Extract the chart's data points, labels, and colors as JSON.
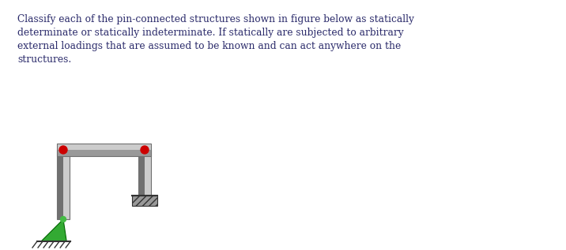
{
  "text_lines": [
    "Classify each of the pin-connected structures shown in figure below as statically",
    "determinate or statically indeterminate. If statically are subjected to arbitrary",
    "external loadings that are assumed to be known and can act anywhere on the",
    "structures."
  ],
  "text_color": "#2b2b6b",
  "background_color": "#ffffff",
  "pin_color": "#cc0000",
  "support_green": "#33aa33",
  "gray_dark": "#707070",
  "gray_mid": "#999999",
  "gray_light": "#cccccc",
  "hatch_dark": "#444444"
}
